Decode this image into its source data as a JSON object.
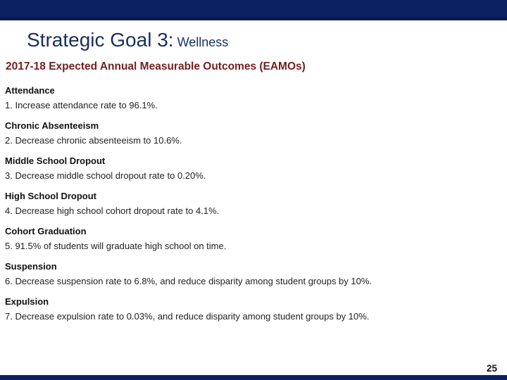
{
  "slide": {
    "title": "Strategic Goal 3:",
    "title_suffix": " Wellness",
    "subtitle": "2017-18 Expected Annual Measurable Outcomes (EAMOs)",
    "page_number": "25",
    "sections": [
      {
        "heading": "Attendance",
        "item": "1. Increase attendance rate to 96.1%."
      },
      {
        "heading": "Chronic Absenteeism",
        "item": "2. Decrease chronic absenteeism to 10.6%."
      },
      {
        "heading": "Middle School Dropout",
        "item": "3. Decrease middle school dropout rate to 0.20%."
      },
      {
        "heading": "High School Dropout",
        "item": "4. Decrease high school cohort dropout rate to 4.1%."
      },
      {
        "heading": "Cohort Graduation",
        "item": "5. 91.5% of students will graduate high school on time."
      },
      {
        "heading": "Suspension",
        "item": "6. Decrease suspension rate to 6.8%, and reduce disparity among student groups by 10%."
      },
      {
        "heading": "Expulsion",
        "item": "7. Decrease expulsion rate to 0.03%, and reduce disparity among student groups by 10%."
      }
    ],
    "colors": {
      "top_bar": "#0b2161",
      "top_bar_edge": "#0a1b4a",
      "bottom_bar": "#0b2161",
      "title": "#17305f",
      "subtitle": "#731f1f",
      "heading_text": "#111111",
      "body_text": "#222222"
    }
  }
}
